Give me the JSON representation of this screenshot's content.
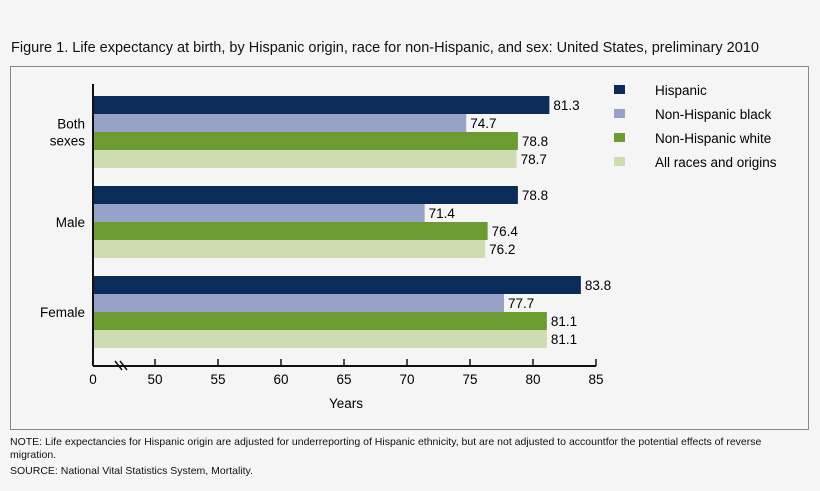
{
  "chart_data": {
    "type": "bar",
    "orientation": "horizontal",
    "title": "Figure 1. Life expectancy at birth, by Hispanic origin, race for non-Hispanic, and sex: United States, preliminary 2010",
    "categories": [
      "Both sexes",
      "Male",
      "Female"
    ],
    "category_lines": [
      [
        "Both",
        "sexes"
      ],
      [
        "Male"
      ],
      [
        "Female"
      ]
    ],
    "series": [
      {
        "name": "Hispanic",
        "color": "#0b2b58",
        "values": [
          81.3,
          78.8,
          83.8
        ]
      },
      {
        "name": "Non-Hispanic black",
        "color": "#97a2c9",
        "values": [
          74.7,
          71.4,
          77.7
        ]
      },
      {
        "name": "Non-Hispanic white",
        "color": "#6b9b31",
        "values": [
          78.8,
          76.4,
          81.1
        ]
      },
      {
        "name": "All races and origins",
        "color": "#cddcb1",
        "values": [
          78.7,
          76.2,
          81.1
        ]
      }
    ],
    "xlabel": "Years",
    "xticks": [
      0,
      50,
      55,
      60,
      65,
      70,
      75,
      80,
      85
    ],
    "axis_break": true,
    "xlim": [
      0,
      85
    ],
    "legend": "top-right",
    "grid": false
  },
  "notes": {
    "note": "NOTE: Life expectancies for Hispanic origin are adjusted for underreporting of Hispanic ethnicity, but are not adjusted to accountfor the potential effects of reverse migration.",
    "source": "SOURCE: National Vital Statistics System, Mortality."
  }
}
